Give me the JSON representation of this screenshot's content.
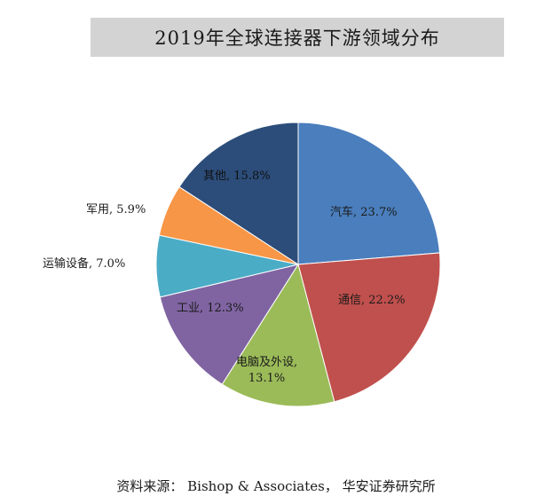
{
  "title": "2019年全球连接器下游领域分布",
  "source": "资料来源： Bishop & Associates， 华安证券研究所",
  "chart_data": {
    "type": "pie",
    "title": "2019年全球连接器下游领域分布",
    "start_angle": "12 o'clock, clockwise",
    "categories": [
      "汽车",
      "通信",
      "电脑及外设",
      "工业",
      "运输设备",
      "军用",
      "其他"
    ],
    "values": [
      23.7,
      22.2,
      13.1,
      12.3,
      7.0,
      5.9,
      15.8
    ],
    "unit": "%",
    "colors": [
      "#4a7ebd",
      "#c0504d",
      "#9bbb59",
      "#8064a2",
      "#4bacc6",
      "#f79646",
      "#2c4d7a"
    ],
    "labels": [
      "汽车, 23.7%",
      "通信, 22.2%",
      "电脑及外设, 13.1%",
      "工业, 12.3%",
      "运输设备, 7.0%",
      "军用, 5.9%",
      "其他, 15.8%"
    ],
    "legend": "none (data labels on slices)"
  },
  "labels": {
    "auto": "汽车, 23.7%",
    "telecom": "通信, 22.2%",
    "computer_line1": "电脑及外设,",
    "computer_line2": "13.1%",
    "industrial": "工业, 12.3%",
    "transport": "运输设备, 7.0%",
    "military": "军用, 5.9%",
    "other": "其他, 15.8%"
  }
}
